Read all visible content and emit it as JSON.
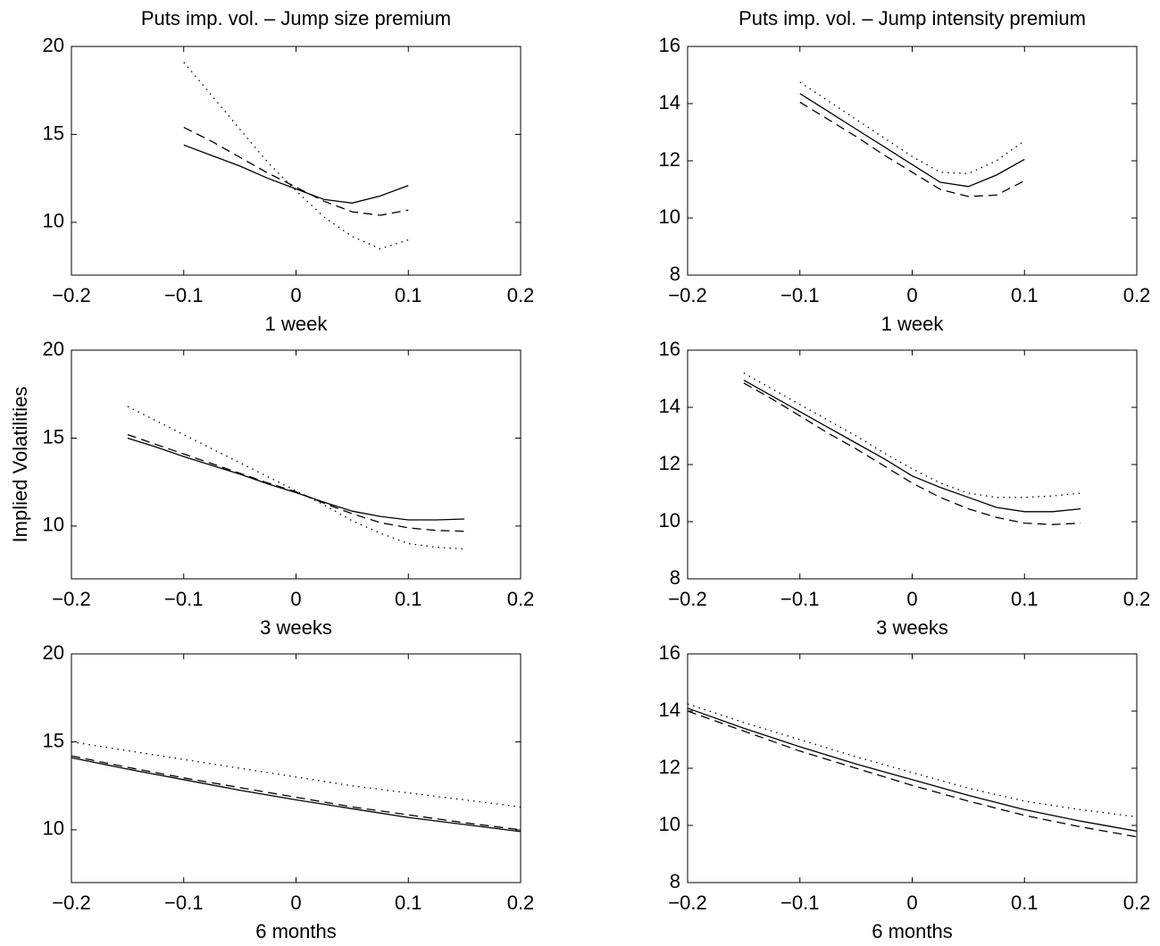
{
  "chart_data": [
    {
      "type": "line",
      "title": "Puts imp. vol. – Jump size premium",
      "xlabel": "1 week",
      "x": [
        -0.1,
        -0.075,
        -0.05,
        -0.025,
        0,
        0.025,
        0.05,
        0.075,
        0.1
      ],
      "series": [
        {
          "color": "#000000",
          "style": "solid",
          "values": [
            14.4,
            13.8,
            13.2,
            12.5,
            11.9,
            11.3,
            11.1,
            11.5,
            12.1
          ]
        },
        {
          "color": "#000000",
          "style": "dashed",
          "values": [
            15.4,
            14.6,
            13.7,
            12.8,
            12.0,
            11.2,
            10.6,
            10.4,
            10.7
          ]
        },
        {
          "color": "#000000",
          "style": "dotted",
          "values": [
            19.1,
            17.2,
            15.3,
            13.4,
            11.8,
            10.3,
            9.2,
            8.5,
            9.0
          ]
        }
      ],
      "xlim": [
        -0.2,
        0.2
      ],
      "xticks": [
        {
          "value": -0.2,
          "label": "−0.2"
        },
        {
          "value": -0.1,
          "label": "−0.1"
        },
        0,
        0.1,
        0.2
      ],
      "ylim": [
        7,
        20
      ],
      "yticks": [
        10,
        15,
        20
      ]
    },
    {
      "type": "line",
      "title": "Puts imp. vol. – Jump intensity premium",
      "xlabel": "1 week",
      "x": [
        -0.1,
        -0.075,
        -0.05,
        -0.025,
        0,
        0.025,
        0.05,
        0.075,
        0.1
      ],
      "series": [
        {
          "color": "#000000",
          "style": "solid",
          "values": [
            14.35,
            13.73,
            13.11,
            12.49,
            11.87,
            11.25,
            11.1,
            11.5,
            12.05
          ]
        },
        {
          "color": "#000000",
          "style": "dashed",
          "values": [
            14.05,
            13.45,
            12.85,
            12.2,
            11.6,
            11.0,
            10.75,
            10.8,
            11.3
          ]
        },
        {
          "color": "#000000",
          "style": "dotted",
          "values": [
            14.75,
            14.1,
            13.45,
            12.8,
            12.15,
            11.6,
            11.55,
            12.0,
            12.7
          ]
        }
      ],
      "xlim": [
        -0.2,
        0.2
      ],
      "xticks": [
        {
          "value": -0.2,
          "label": "−0.2"
        },
        {
          "value": -0.1,
          "label": "−0.1"
        },
        0,
        0.1,
        0.2
      ],
      "ylim": [
        8,
        16
      ],
      "yticks": [
        8,
        10,
        12,
        14,
        16
      ]
    },
    {
      "type": "line",
      "xlabel": "3 weeks",
      "ylabel": "Implied Volatilities",
      "x": [
        -0.15,
        -0.125,
        -0.1,
        -0.075,
        -0.05,
        -0.025,
        0,
        0.025,
        0.05,
        0.075,
        0.1,
        0.125,
        0.15
      ],
      "series": [
        {
          "color": "#000000",
          "style": "solid",
          "values": [
            15.0,
            14.5,
            13.95,
            13.45,
            12.95,
            12.4,
            11.9,
            11.35,
            10.85,
            10.55,
            10.35,
            10.35,
            10.4
          ]
        },
        {
          "color": "#000000",
          "style": "dashed",
          "values": [
            15.2,
            14.65,
            14.1,
            13.55,
            13.0,
            12.45,
            11.95,
            11.3,
            10.7,
            10.2,
            9.9,
            9.75,
            9.7
          ]
        },
        {
          "color": "#000000",
          "style": "dotted",
          "values": [
            16.8,
            16.0,
            15.2,
            14.4,
            13.6,
            12.8,
            12.0,
            11.2,
            10.3,
            9.6,
            9.0,
            8.8,
            8.7
          ]
        }
      ],
      "xlim": [
        -0.2,
        0.2
      ],
      "xticks": [
        {
          "value": -0.2,
          "label": "−0.2"
        },
        {
          "value": -0.1,
          "label": "−0.1"
        },
        0,
        0.1,
        0.2
      ],
      "ylim": [
        7,
        20
      ],
      "yticks": [
        10,
        15,
        20
      ]
    },
    {
      "type": "line",
      "xlabel": "3 weeks",
      "x": [
        -0.15,
        -0.125,
        -0.1,
        -0.075,
        -0.05,
        -0.025,
        0,
        0.025,
        0.05,
        0.075,
        0.1,
        0.125,
        0.15
      ],
      "series": [
        {
          "color": "#000000",
          "style": "solid",
          "values": [
            14.95,
            14.4,
            13.85,
            13.3,
            12.75,
            12.2,
            11.6,
            11.2,
            10.85,
            10.5,
            10.35,
            10.35,
            10.45
          ]
        },
        {
          "color": "#000000",
          "style": "dashed",
          "values": [
            14.85,
            14.3,
            13.7,
            13.1,
            12.55,
            11.95,
            11.35,
            10.85,
            10.45,
            10.15,
            9.95,
            9.9,
            9.95
          ]
        },
        {
          "color": "#000000",
          "style": "dotted",
          "values": [
            15.2,
            14.65,
            14.1,
            13.55,
            13.0,
            12.4,
            11.85,
            11.35,
            11.0,
            10.85,
            10.85,
            10.9,
            11.0
          ]
        }
      ],
      "xlim": [
        -0.2,
        0.2
      ],
      "xticks": [
        {
          "value": -0.2,
          "label": "−0.2"
        },
        {
          "value": -0.1,
          "label": "−0.1"
        },
        0,
        0.1,
        0.2
      ],
      "ylim": [
        8,
        16
      ],
      "yticks": [
        8,
        10,
        12,
        14,
        16
      ]
    },
    {
      "type": "line",
      "xlabel": "6 months",
      "x": [
        -0.2,
        -0.15,
        -0.1,
        -0.05,
        0,
        0.05,
        0.1,
        0.15,
        0.2
      ],
      "series": [
        {
          "color": "#000000",
          "style": "solid",
          "values": [
            14.1,
            13.45,
            12.85,
            12.25,
            11.7,
            11.2,
            10.7,
            10.3,
            9.9
          ]
        },
        {
          "color": "#000000",
          "style": "dashed",
          "values": [
            14.2,
            13.55,
            12.95,
            12.4,
            11.85,
            11.3,
            10.85,
            10.4,
            10.0
          ]
        },
        {
          "color": "#000000",
          "style": "dotted",
          "values": [
            15.0,
            14.5,
            14.0,
            13.5,
            13.0,
            12.5,
            12.1,
            11.7,
            11.3
          ]
        }
      ],
      "xlim": [
        -0.2,
        0.2
      ],
      "xticks": [
        {
          "value": -0.2,
          "label": "−0.2"
        },
        {
          "value": -0.1,
          "label": "−0.1"
        },
        0,
        0.1,
        0.2
      ],
      "ylim": [
        7,
        20
      ],
      "yticks": [
        10,
        15,
        20
      ]
    },
    {
      "type": "line",
      "xlabel": "6 months",
      "x": [
        -0.2,
        -0.15,
        -0.1,
        -0.05,
        0,
        0.05,
        0.1,
        0.15,
        0.2
      ],
      "series": [
        {
          "color": "#000000",
          "style": "solid",
          "values": [
            14.1,
            13.4,
            12.75,
            12.15,
            11.6,
            11.05,
            10.55,
            10.15,
            9.8
          ]
        },
        {
          "color": "#000000",
          "style": "dashed",
          "values": [
            14.0,
            13.3,
            12.6,
            12.0,
            11.4,
            10.85,
            10.35,
            9.95,
            9.6
          ]
        },
        {
          "color": "#000000",
          "style": "dotted",
          "values": [
            14.25,
            13.6,
            13.0,
            12.4,
            11.85,
            11.3,
            10.85,
            10.55,
            10.3
          ]
        }
      ],
      "xlim": [
        -0.2,
        0.2
      ],
      "xticks": [
        {
          "value": -0.2,
          "label": "−0.2"
        },
        {
          "value": -0.1,
          "label": "−0.1"
        },
        0,
        0.1,
        0.2
      ],
      "ylim": [
        8,
        16
      ],
      "yticks": [
        8,
        10,
        12,
        14,
        16
      ]
    }
  ]
}
